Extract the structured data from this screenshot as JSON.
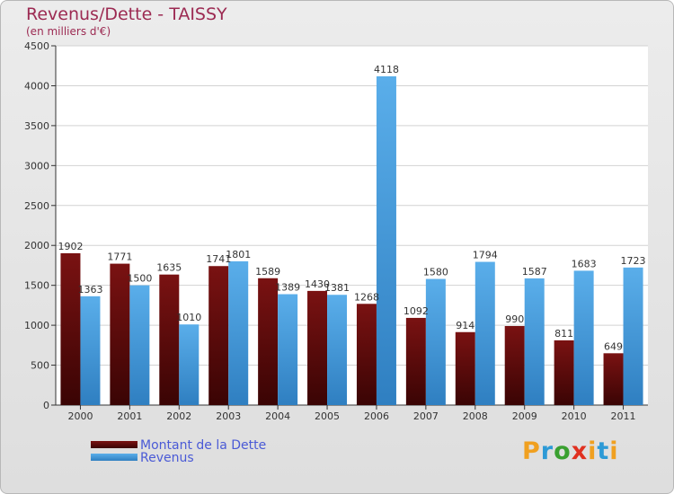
{
  "colors": {
    "debt_top": "#7a1212",
    "debt_bottom": "#3a0404",
    "revenue_top": "#5aaeea",
    "revenue_bottom": "#2f7fc1",
    "title": "#9c2a52",
    "legend_text": "#4a5ad6",
    "logo_p": "#f0a020",
    "logo_r": "#2d9ad6",
    "logo_o": "#3aa030",
    "logo_x": "#e03020",
    "logo_i": "#f0a020",
    "logo_t": "#2d9ad6"
  },
  "logo": {
    "letters": [
      "P",
      "r",
      "o",
      "x",
      "i",
      "t",
      "i"
    ]
  },
  "chart_data": {
    "type": "bar",
    "title": "Revenus/Dette - TAISSY",
    "subtitle": "(en milliers d'€)",
    "xlabel": "",
    "ylabel": "",
    "ylim": [
      0,
      4500
    ],
    "yticks": [
      0,
      500,
      1000,
      1500,
      2000,
      2500,
      3000,
      3500,
      4000,
      4500
    ],
    "grid": true,
    "legend": "bottom-left",
    "categories": [
      "2000",
      "2001",
      "2002",
      "2003",
      "2004",
      "2005",
      "2006",
      "2007",
      "2008",
      "2009",
      "2010",
      "2011"
    ],
    "series": [
      {
        "name": "Montant de la Dette",
        "values": [
          1902,
          1771,
          1635,
          1741,
          1589,
          1430,
          1268,
          1092,
          914,
          990,
          811,
          649
        ]
      },
      {
        "name": "Revenus",
        "values": [
          1363,
          1500,
          1010,
          1801,
          1389,
          1381,
          4118,
          1580,
          1794,
          1587,
          1683,
          1723
        ]
      }
    ]
  }
}
